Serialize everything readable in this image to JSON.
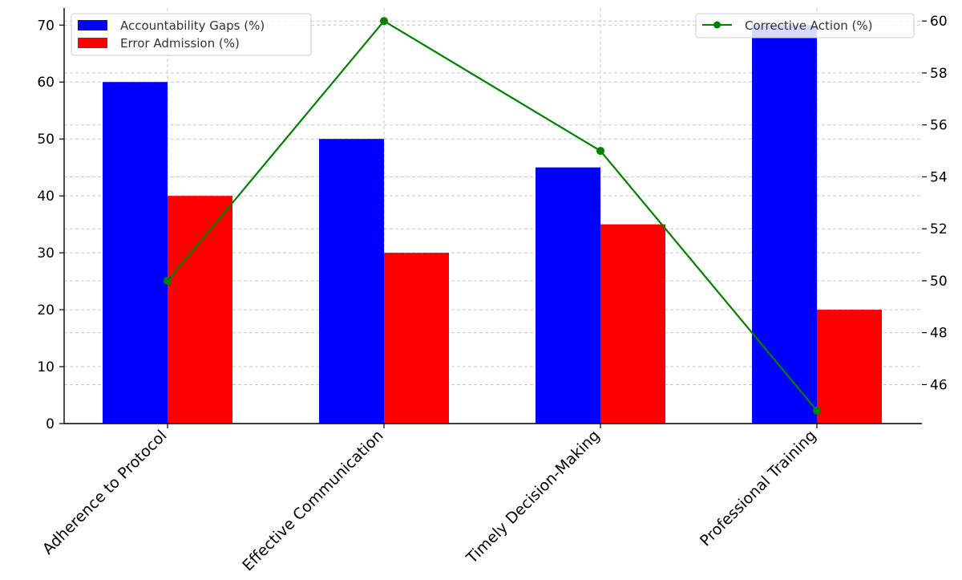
{
  "chart_data": {
    "type": "bar",
    "categories": [
      "Adherence to Protocol",
      "Effective Communication",
      "Timely Decision-Making",
      "Professional Training"
    ],
    "series": [
      {
        "name": "Accountability Gaps (%)",
        "type": "bar",
        "axis": "left",
        "color": "#0000ff",
        "values": [
          60,
          50,
          45,
          70
        ]
      },
      {
        "name": "Error Admission (%)",
        "type": "bar",
        "axis": "left",
        "color": "#ff0000",
        "values": [
          40,
          30,
          35,
          20
        ]
      },
      {
        "name": "Corrective Action (%)",
        "type": "line",
        "axis": "right",
        "color": "#008000",
        "marker": "circle",
        "values": [
          50,
          60,
          55,
          45
        ]
      }
    ],
    "y_left": {
      "range": [
        0,
        73
      ],
      "ticks": [
        0,
        10,
        20,
        30,
        40,
        50,
        60,
        70
      ]
    },
    "y_right": {
      "range": [
        44.5,
        60.5
      ],
      "ticks": [
        46,
        48,
        50,
        52,
        54,
        56,
        58,
        60
      ]
    },
    "grid": true,
    "legend_bars_placement": "upper-left",
    "legend_line_placement": "upper-right",
    "title": "",
    "xlabel": "",
    "ylabel": ""
  }
}
